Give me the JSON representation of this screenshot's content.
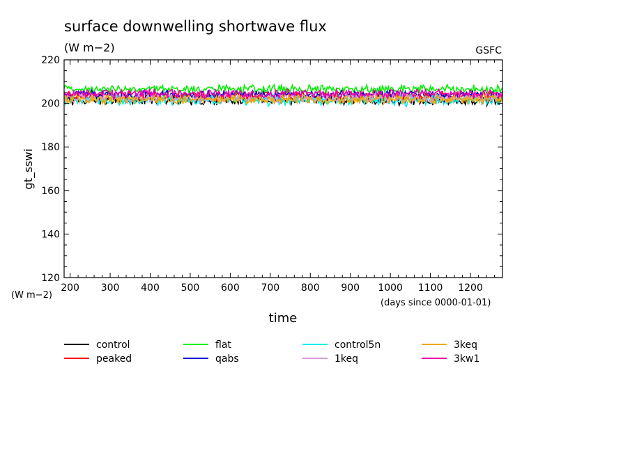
{
  "chart_data": {
    "type": "line",
    "title": "surface downwelling shortwave flux",
    "subtitle": "(W m−2)",
    "source_label": "GSFC",
    "ylabel": "gt_sswi",
    "y_unit_label": "(W m−2)",
    "xlabel": "time",
    "x_unit_label": "(days since 0000-01-01)",
    "xlim": [
      185,
      1280
    ],
    "ylim": [
      120,
      220
    ],
    "x_ticks": [
      200,
      300,
      400,
      500,
      600,
      700,
      800,
      900,
      1000,
      1100,
      1200
    ],
    "y_ticks": [
      120,
      140,
      160,
      180,
      200,
      220
    ],
    "grid": false,
    "legend_position": "bottom",
    "series": [
      {
        "name": "control",
        "color": "#000000",
        "base": 201.5,
        "amp": 1.8
      },
      {
        "name": "peaked",
        "color": "#ff0000",
        "base": 203.5,
        "amp": 1.5
      },
      {
        "name": "flat",
        "color": "#00ee00",
        "base": 206.5,
        "amp": 1.5
      },
      {
        "name": "qabs",
        "color": "#0000cc",
        "base": 204.0,
        "amp": 1.5
      },
      {
        "name": "control5n",
        "color": "#00eeee",
        "base": 201.5,
        "amp": 2.0
      },
      {
        "name": "1keq",
        "color": "#dd99dd",
        "base": 202.5,
        "amp": 1.8
      },
      {
        "name": "3keq",
        "color": "#eeaa00",
        "base": 202.0,
        "amp": 1.8
      },
      {
        "name": "3kw1",
        "color": "#ee00aa",
        "base": 204.5,
        "amp": 1.6
      }
    ]
  }
}
